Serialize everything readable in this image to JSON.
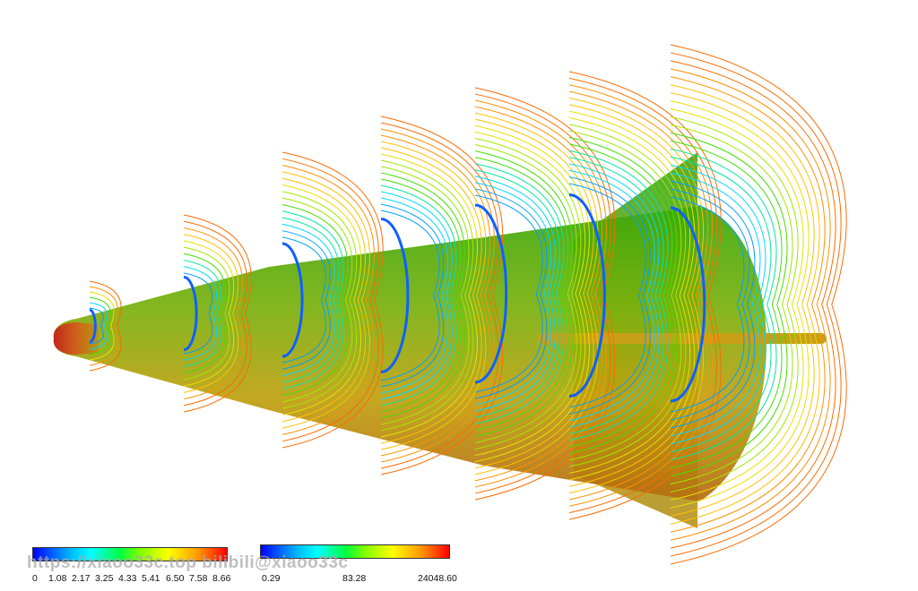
{
  "legend1": {
    "ticks": [
      "0",
      "1.08",
      "2.17",
      "3.25",
      "4.33",
      "5.41",
      "6.50",
      "7.58",
      "8.66"
    ]
  },
  "legend2": {
    "ticks": [
      "0.29",
      "83.28",
      "24048.60"
    ]
  },
  "watermark": "https://xiaoo33c.top bilibili@xiaoo33c",
  "colors": {
    "body_red": "#c0281a",
    "body_olive": "#b59a10",
    "body_green": "#3aa80a",
    "contour_cool": "#00c8ff",
    "contour_warm": "#ff8a00",
    "background": "#ffffff"
  }
}
